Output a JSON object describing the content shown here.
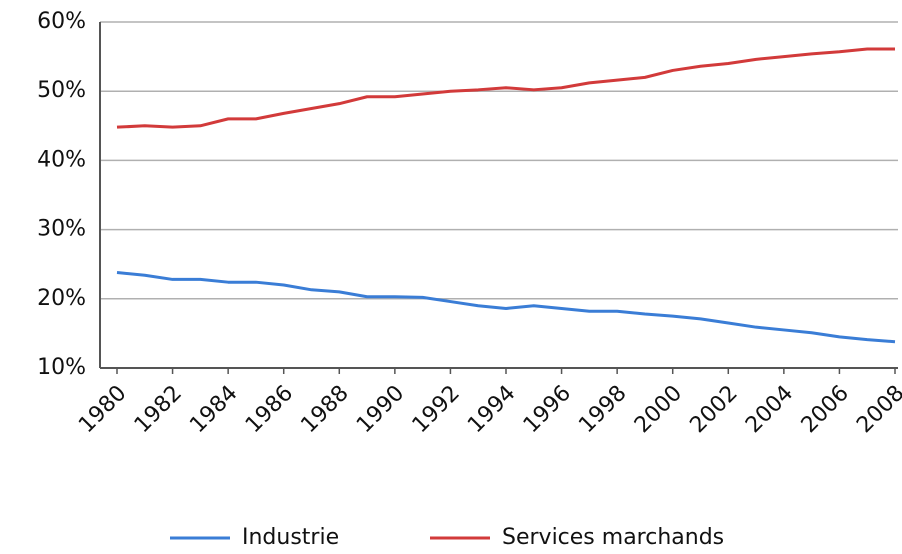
{
  "chart_data": {
    "type": "line",
    "x": [
      1980,
      1981,
      1982,
      1983,
      1984,
      1985,
      1986,
      1987,
      1988,
      1989,
      1990,
      1991,
      1992,
      1993,
      1994,
      1995,
      1996,
      1997,
      1998,
      1999,
      2000,
      2001,
      2002,
      2003,
      2004,
      2005,
      2006,
      2007,
      2008
    ],
    "series": [
      {
        "name": "Industrie",
        "color": "#3a7dd6",
        "values": [
          23.8,
          23.4,
          22.8,
          22.8,
          22.4,
          22.4,
          22.0,
          21.3,
          21.0,
          20.3,
          20.3,
          20.2,
          19.6,
          19.0,
          18.6,
          19.0,
          18.6,
          18.2,
          18.2,
          17.8,
          17.5,
          17.1,
          16.5,
          15.9,
          15.5,
          15.1,
          14.5,
          14.1,
          13.8
        ]
      },
      {
        "name": "Services marchands",
        "color": "#d23a3a",
        "values": [
          44.8,
          45.0,
          44.8,
          45.0,
          46.0,
          46.0,
          46.8,
          47.5,
          48.2,
          49.2,
          49.2,
          49.6,
          50.0,
          50.2,
          50.5,
          50.2,
          50.5,
          51.2,
          51.6,
          52.0,
          53.0,
          53.6,
          54.0,
          54.6,
          55.0,
          55.4,
          55.7,
          56.1,
          56.1
        ]
      }
    ],
    "xlim": [
      1980,
      2008
    ],
    "xticks": [
      1980,
      1982,
      1984,
      1986,
      1988,
      1990,
      1992,
      1994,
      1996,
      1998,
      2000,
      2002,
      2004,
      2006,
      2008
    ],
    "ylim": [
      10,
      60
    ],
    "yticks": [
      {
        "value": 10,
        "label": "10%"
      },
      {
        "value": 20,
        "label": "20%"
      },
      {
        "value": 30,
        "label": "30%"
      },
      {
        "value": 40,
        "label": "40%"
      },
      {
        "value": 50,
        "label": "50%"
      },
      {
        "value": 60,
        "label": "60%"
      }
    ],
    "grid": true,
    "legend": "bottom"
  }
}
